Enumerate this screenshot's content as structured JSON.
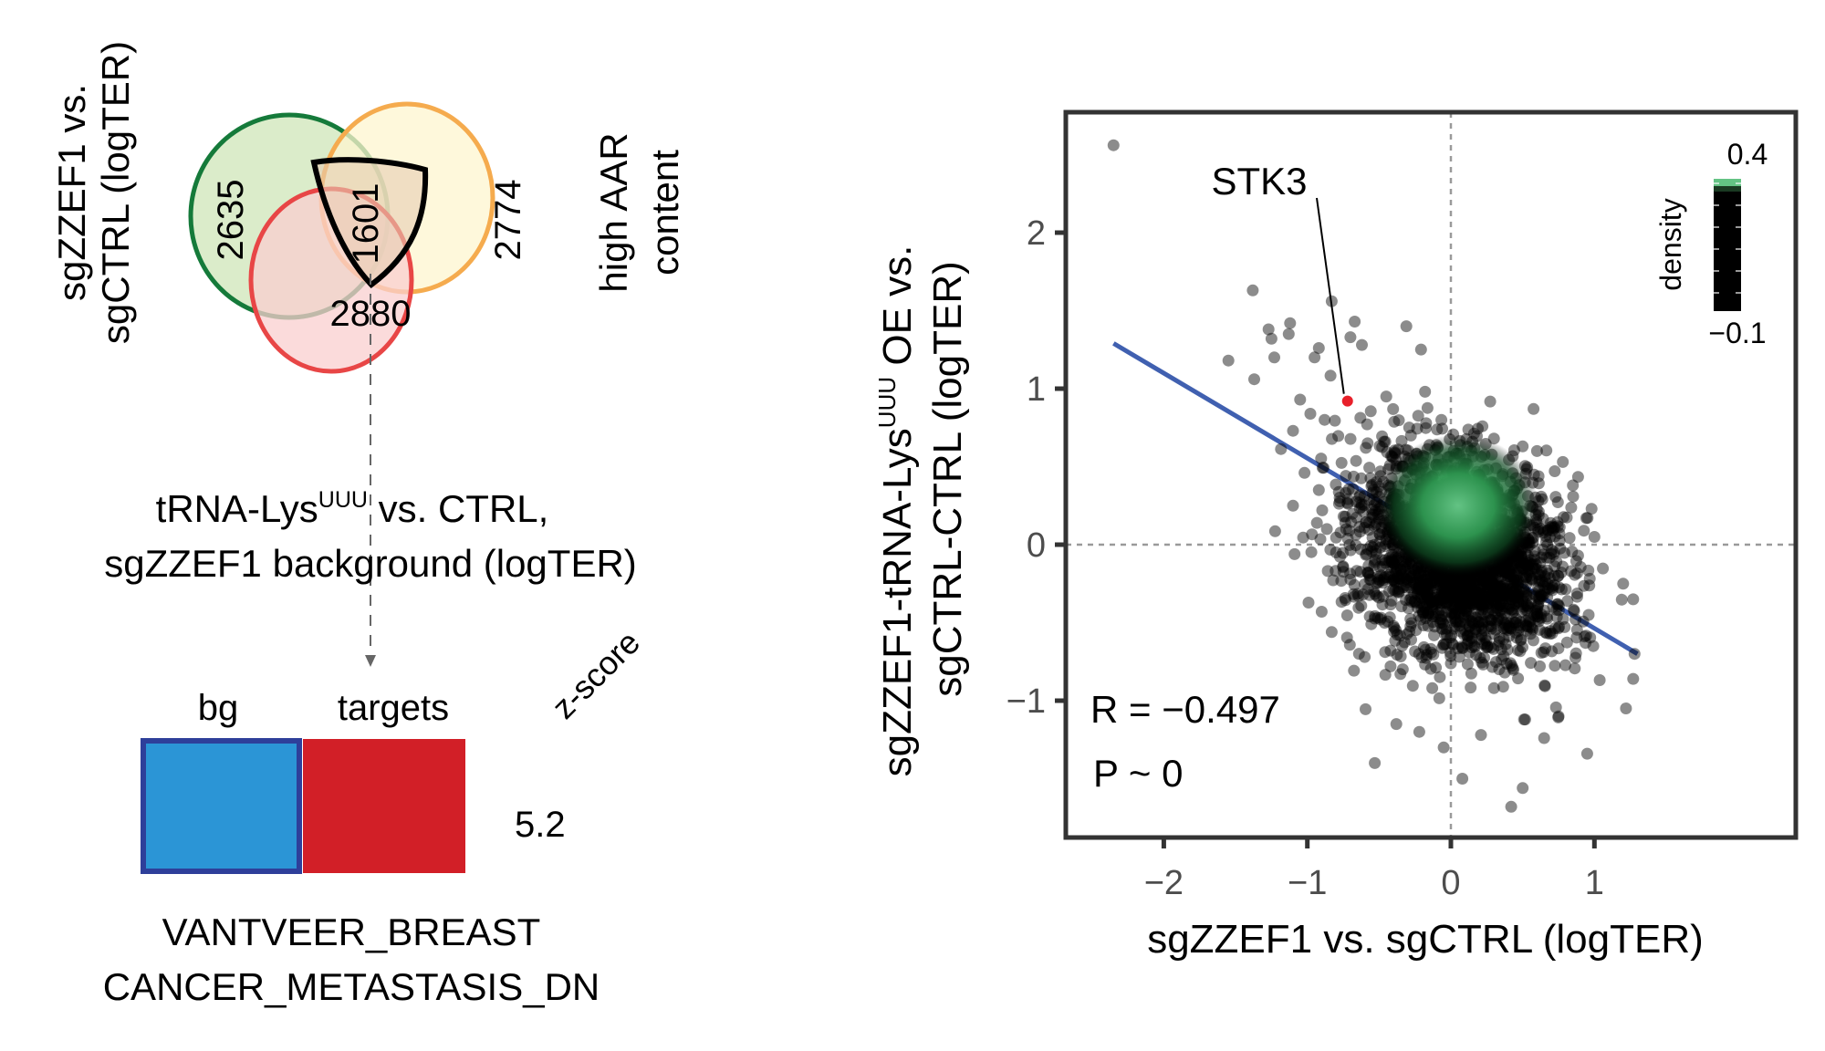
{
  "venn": {
    "sets": [
      {
        "label_lines": [
          "sgZZEF1 vs.",
          "sgCTRL (logTER)"
        ],
        "unique_count": "2635",
        "stroke": "#157a3a",
        "fill": "#cfe6b8"
      },
      {
        "label_lines": [
          "high AAR",
          "content"
        ],
        "unique_count": "2774",
        "stroke": "#f5ab4e",
        "fill": "#fdf6cf"
      },
      {
        "label_lines": [
          "tRNA-Lys",
          "sgZZEF1 background (logTER)"
        ],
        "label_superscript": "UUU",
        "label_suffix": " vs. CTRL,",
        "unique_count": "2880",
        "stroke": "#e84646",
        "fill": "#f9cfcf"
      }
    ],
    "intersection_count": "1601",
    "intersection_fill": "#e6cdb3"
  },
  "enrichment": {
    "columns": [
      {
        "label": "bg",
        "color": "#2b95d6",
        "border": "#2e3f9a"
      },
      {
        "label": "targets",
        "color": "#d21f27"
      }
    ],
    "zscore_header": "z-score",
    "zscore_value": "5.2",
    "gene_set_lines": [
      "VANTVEER_BREAST",
      "CANCER_METASTASIS_DN"
    ]
  },
  "chart_data": {
    "type": "scatter",
    "title": "",
    "xlabel": "sgZZEF1 vs. sgCTRL (logTER)",
    "ylabel_lines": [
      "sgZZEF1-tRNA-Lys",
      "sgCTRL-CTRL (logTER)"
    ],
    "ylabel_superscript": "UUU",
    "ylabel_suffix": " OE vs.",
    "xlim": [
      -2.6,
      1.5
    ],
    "ylim": [
      -1.9,
      2.8
    ],
    "xticks": [
      -2,
      -1,
      0,
      1
    ],
    "xtick_labels": [
      "−2",
      "−1",
      "0",
      "1"
    ],
    "yticks": [
      -1,
      0,
      1,
      2
    ],
    "ytick_labels": [
      "−1",
      "0",
      "1",
      "2"
    ],
    "reference_lines": {
      "x": 0,
      "y": 0,
      "style": "dotted"
    },
    "regression_line": {
      "x": [
        -2.35,
        1.3
      ],
      "y": [
        1.29,
        -0.7
      ],
      "color": "#4060b0"
    },
    "annotation": {
      "label": "STK3",
      "x": -0.72,
      "y": 0.92,
      "color": "#e8202a"
    },
    "stats": {
      "R": "R = −0.497",
      "P": "P ~ 0"
    },
    "density_legend": {
      "title": "density",
      "max_label": "0.4",
      "min_label": "−0.1",
      "low_color": "#000000",
      "high_color": "#63c384"
    },
    "density_peak": {
      "x": 0.05,
      "y": 0.25
    },
    "cloud": {
      "center_x": 0.05,
      "center_y": -0.05,
      "sd_major": 0.38,
      "sd_minor": 0.26,
      "slope": -0.55,
      "n": 2600
    },
    "outliers": [
      {
        "x": -2.35,
        "y": 2.56
      },
      {
        "x": -1.38,
        "y": 1.63
      },
      {
        "x": -1.27,
        "y": 1.38
      },
      {
        "x": -1.12,
        "y": 1.42
      },
      {
        "x": -1.25,
        "y": 1.32
      },
      {
        "x": -1.13,
        "y": 1.35
      },
      {
        "x": -1.55,
        "y": 1.18
      },
      {
        "x": -1.23,
        "y": 1.2
      },
      {
        "x": -1.37,
        "y": 1.06
      },
      {
        "x": -0.83,
        "y": 1.56
      },
      {
        "x": -0.67,
        "y": 1.43
      },
      {
        "x": -0.31,
        "y": 1.4
      },
      {
        "x": -0.92,
        "y": 1.26
      },
      {
        "x": -0.7,
        "y": 1.33
      },
      {
        "x": -0.95,
        "y": 1.2
      },
      {
        "x": -0.62,
        "y": 1.28
      },
      {
        "x": -1.05,
        "y": 0.93
      },
      {
        "x": -1.1,
        "y": 0.73
      },
      {
        "x": -0.88,
        "y": 0.8
      },
      {
        "x": -0.18,
        "y": 0.98
      },
      {
        "x": -0.45,
        "y": 0.95
      },
      {
        "x": -1.02,
        "y": 0.46
      },
      {
        "x": -0.92,
        "y": 0.35
      },
      {
        "x": -1.1,
        "y": 0.25
      },
      {
        "x": -0.8,
        "y": -0.05
      },
      {
        "x": -0.9,
        "y": -0.43
      },
      {
        "x": -0.83,
        "y": -0.56
      },
      {
        "x": -0.42,
        "y": -0.78
      },
      {
        "x": -0.38,
        "y": -1.15
      },
      {
        "x": -0.22,
        "y": -1.2
      },
      {
        "x": -0.53,
        "y": -1.4
      },
      {
        "x": -0.05,
        "y": -1.3
      },
      {
        "x": 0.08,
        "y": -1.5
      },
      {
        "x": 0.21,
        "y": -1.22
      },
      {
        "x": 0.42,
        "y": -1.68
      },
      {
        "x": 0.5,
        "y": -1.56
      },
      {
        "x": 0.65,
        "y": -1.24
      },
      {
        "x": 0.75,
        "y": -1.1
      },
      {
        "x": 0.95,
        "y": -1.34
      },
      {
        "x": 1.22,
        "y": -1.05
      },
      {
        "x": 1.27,
        "y": -0.86
      },
      {
        "x": 1.2,
        "y": -0.25
      },
      {
        "x": 1.27,
        "y": -0.35
      },
      {
        "x": 0.96,
        "y": -0.45
      },
      {
        "x": 1.0,
        "y": 0.05
      },
      {
        "x": 0.85,
        "y": 0.38
      },
      {
        "x": 0.98,
        "y": 0.23
      },
      {
        "x": 0.78,
        "y": 0.53
      },
      {
        "x": 0.6,
        "y": 0.6
      },
      {
        "x": 0.5,
        "y": 0.63
      },
      {
        "x": 0.3,
        "y": 0.68
      },
      {
        "x": 0.15,
        "y": 0.66
      },
      {
        "x": 1.28,
        "y": -0.7
      },
      {
        "x": 0.72,
        "y": -0.2
      },
      {
        "x": 0.62,
        "y": -0.78
      },
      {
        "x": 0.3,
        "y": -0.92
      },
      {
        "x": -0.13,
        "y": -0.92
      },
      {
        "x": -0.6,
        "y": -0.72
      },
      {
        "x": -0.73,
        "y": 0.1
      },
      {
        "x": -0.58,
        "y": 0.65
      }
    ]
  }
}
